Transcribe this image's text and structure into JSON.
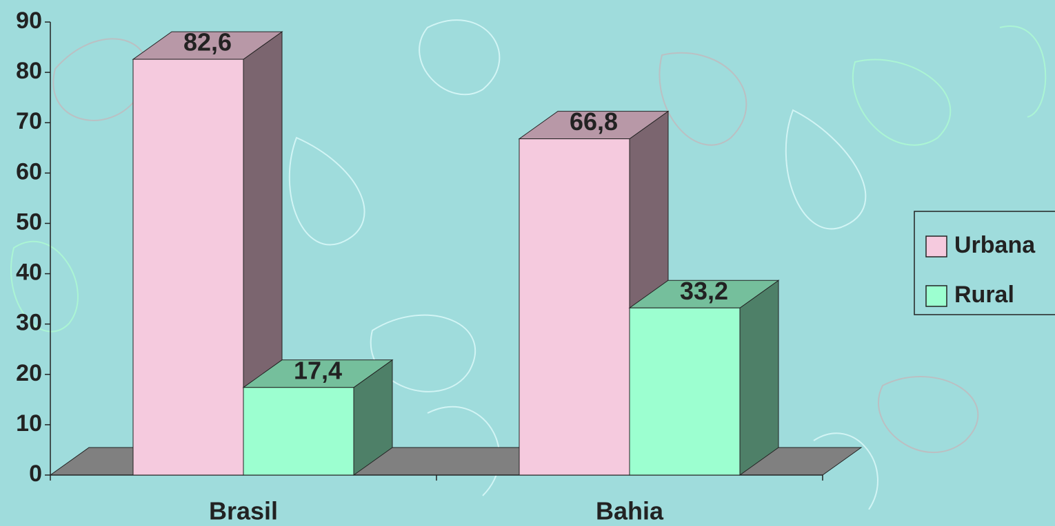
{
  "chart_data": {
    "type": "bar3d",
    "categories": [
      "Brasil",
      "Bahia"
    ],
    "series": [
      {
        "name": "Urbana",
        "color": "#f5cade",
        "values": [
          82.6,
          66.8
        ],
        "value_labels": [
          "82,6",
          "66,8"
        ]
      },
      {
        "name": "Rural",
        "color": "#9cffd0",
        "values": [
          17.4,
          33.2
        ],
        "value_labels": [
          "17,4",
          "33,2"
        ]
      }
    ],
    "ylim": [
      0,
      90
    ],
    "yticks": [
      0,
      10,
      20,
      30,
      40,
      50,
      60,
      70,
      80,
      90
    ],
    "legend": "right"
  }
}
